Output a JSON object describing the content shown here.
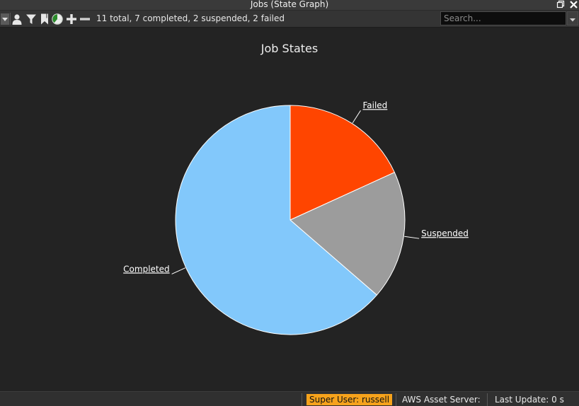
{
  "window": {
    "title": "Jobs (State Graph)",
    "restore_icon": "restore-window-icon",
    "close_icon": "close-icon"
  },
  "toolbar": {
    "buttons": [
      {
        "name": "menu-dropdown-button",
        "icon": "dropdown-arrow-icon"
      },
      {
        "name": "user-filter-button",
        "icon": "user-icon"
      },
      {
        "name": "filter-button",
        "icon": "filter-icon"
      },
      {
        "name": "bookmark-button",
        "icon": "bookmark-icon"
      },
      {
        "name": "pie-chart-button",
        "icon": "pie-chart-icon"
      },
      {
        "name": "zoom-in-button",
        "icon": "plus-icon"
      },
      {
        "name": "zoom-out-button",
        "icon": "minus-icon"
      }
    ],
    "summary": "11 total, 7 completed, 2 suspended, 2 failed",
    "search": {
      "placeholder": "Search...",
      "value": ""
    }
  },
  "chart_data": {
    "type": "pie",
    "title": "Job States",
    "slices": [
      {
        "label": "Failed",
        "value": 2,
        "color": "#ff4500"
      },
      {
        "label": "Suspended",
        "value": 2,
        "color": "#9c9c9c"
      },
      {
        "label": "Completed",
        "value": 7,
        "color": "#82c8fb"
      }
    ],
    "start_angle": "12 o'clock",
    "direction": "clockwise",
    "label_color": "#ffffff"
  },
  "status_bar": {
    "super_user": "Super User: russell",
    "aws_server": "AWS Asset Server:",
    "last_update": "Last Update: 0 s",
    "super_user_color": "#f6a21b"
  }
}
